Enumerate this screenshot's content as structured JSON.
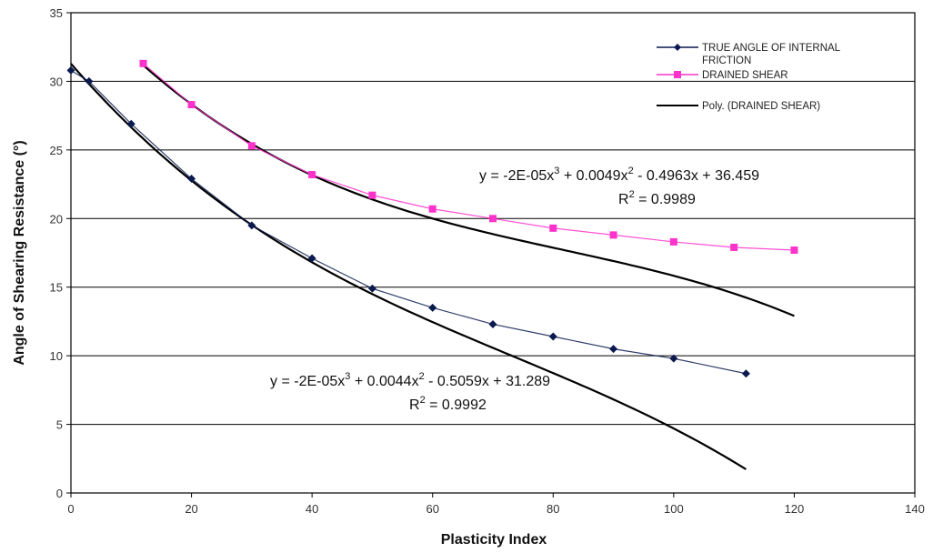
{
  "chart_data": {
    "type": "scatter",
    "xlabel": "Plasticity Index",
    "ylabel": "Angle of Shearing Resistance (°)",
    "xlim": [
      0,
      140
    ],
    "ylim": [
      0,
      35
    ],
    "xticks": [
      0,
      20,
      40,
      60,
      80,
      100,
      120,
      140
    ],
    "yticks": [
      0,
      5,
      10,
      15,
      20,
      25,
      30,
      35
    ],
    "grid": "horizontal",
    "legend_position": "top-right",
    "series": [
      {
        "name": "TRUE ANGLE OF INTERNAL FRICTION",
        "color": "#0a1a4f",
        "marker": "diamond",
        "x": [
          0,
          3,
          10,
          20,
          30,
          40,
          50,
          60,
          70,
          80,
          90,
          100,
          112
        ],
        "y": [
          30.8,
          30.0,
          26.9,
          22.9,
          19.5,
          17.1,
          14.9,
          13.5,
          12.3,
          11.4,
          10.5,
          9.8,
          8.7
        ]
      },
      {
        "name": "DRAINED SHEAR",
        "color": "#ff33cc",
        "marker": "square",
        "x": [
          12,
          20,
          30,
          40,
          50,
          60,
          70,
          80,
          90,
          100,
          110,
          120
        ],
        "y": [
          31.3,
          28.3,
          25.3,
          23.2,
          21.7,
          20.7,
          20.0,
          19.3,
          18.8,
          18.3,
          17.9,
          17.7
        ]
      }
    ],
    "trendlines": [
      {
        "name": "Poly. (DRAINED SHEAR)",
        "color": "#000000",
        "coeffs": [
          -2e-05,
          0.0049,
          -0.4963,
          36.459
        ],
        "x_range": [
          12,
          120
        ],
        "equation": "y = -2E-05x",
        "equation_tail": " + 0.0049x",
        "equation_end": " - 0.4963x + 36.459",
        "r2_text": "R",
        "r2_value": " = 0.9989"
      },
      {
        "name": "",
        "color": "#000000",
        "coeffs": [
          -2e-05,
          0.0044,
          -0.5059,
          31.289
        ],
        "x_range": [
          0,
          112
        ],
        "equation": "y = -2E-05x",
        "equation_tail": " + 0.0044x",
        "equation_end": " - 0.5059x + 31.289",
        "r2_text": "R",
        "r2_value": " = 0.9992"
      }
    ],
    "legend": [
      {
        "label_line1": "TRUE ANGLE OF INTERNAL",
        "label_line2": "FRICTION",
        "style": "line-diamond",
        "color": "#0a1a4f"
      },
      {
        "label_line1": "DRAINED SHEAR",
        "label_line2": "",
        "style": "line-square",
        "color": "#ff33cc"
      },
      {
        "label_line1": "Poly. (DRAINED SHEAR)",
        "label_line2": "",
        "style": "line",
        "color": "#000000"
      }
    ]
  }
}
